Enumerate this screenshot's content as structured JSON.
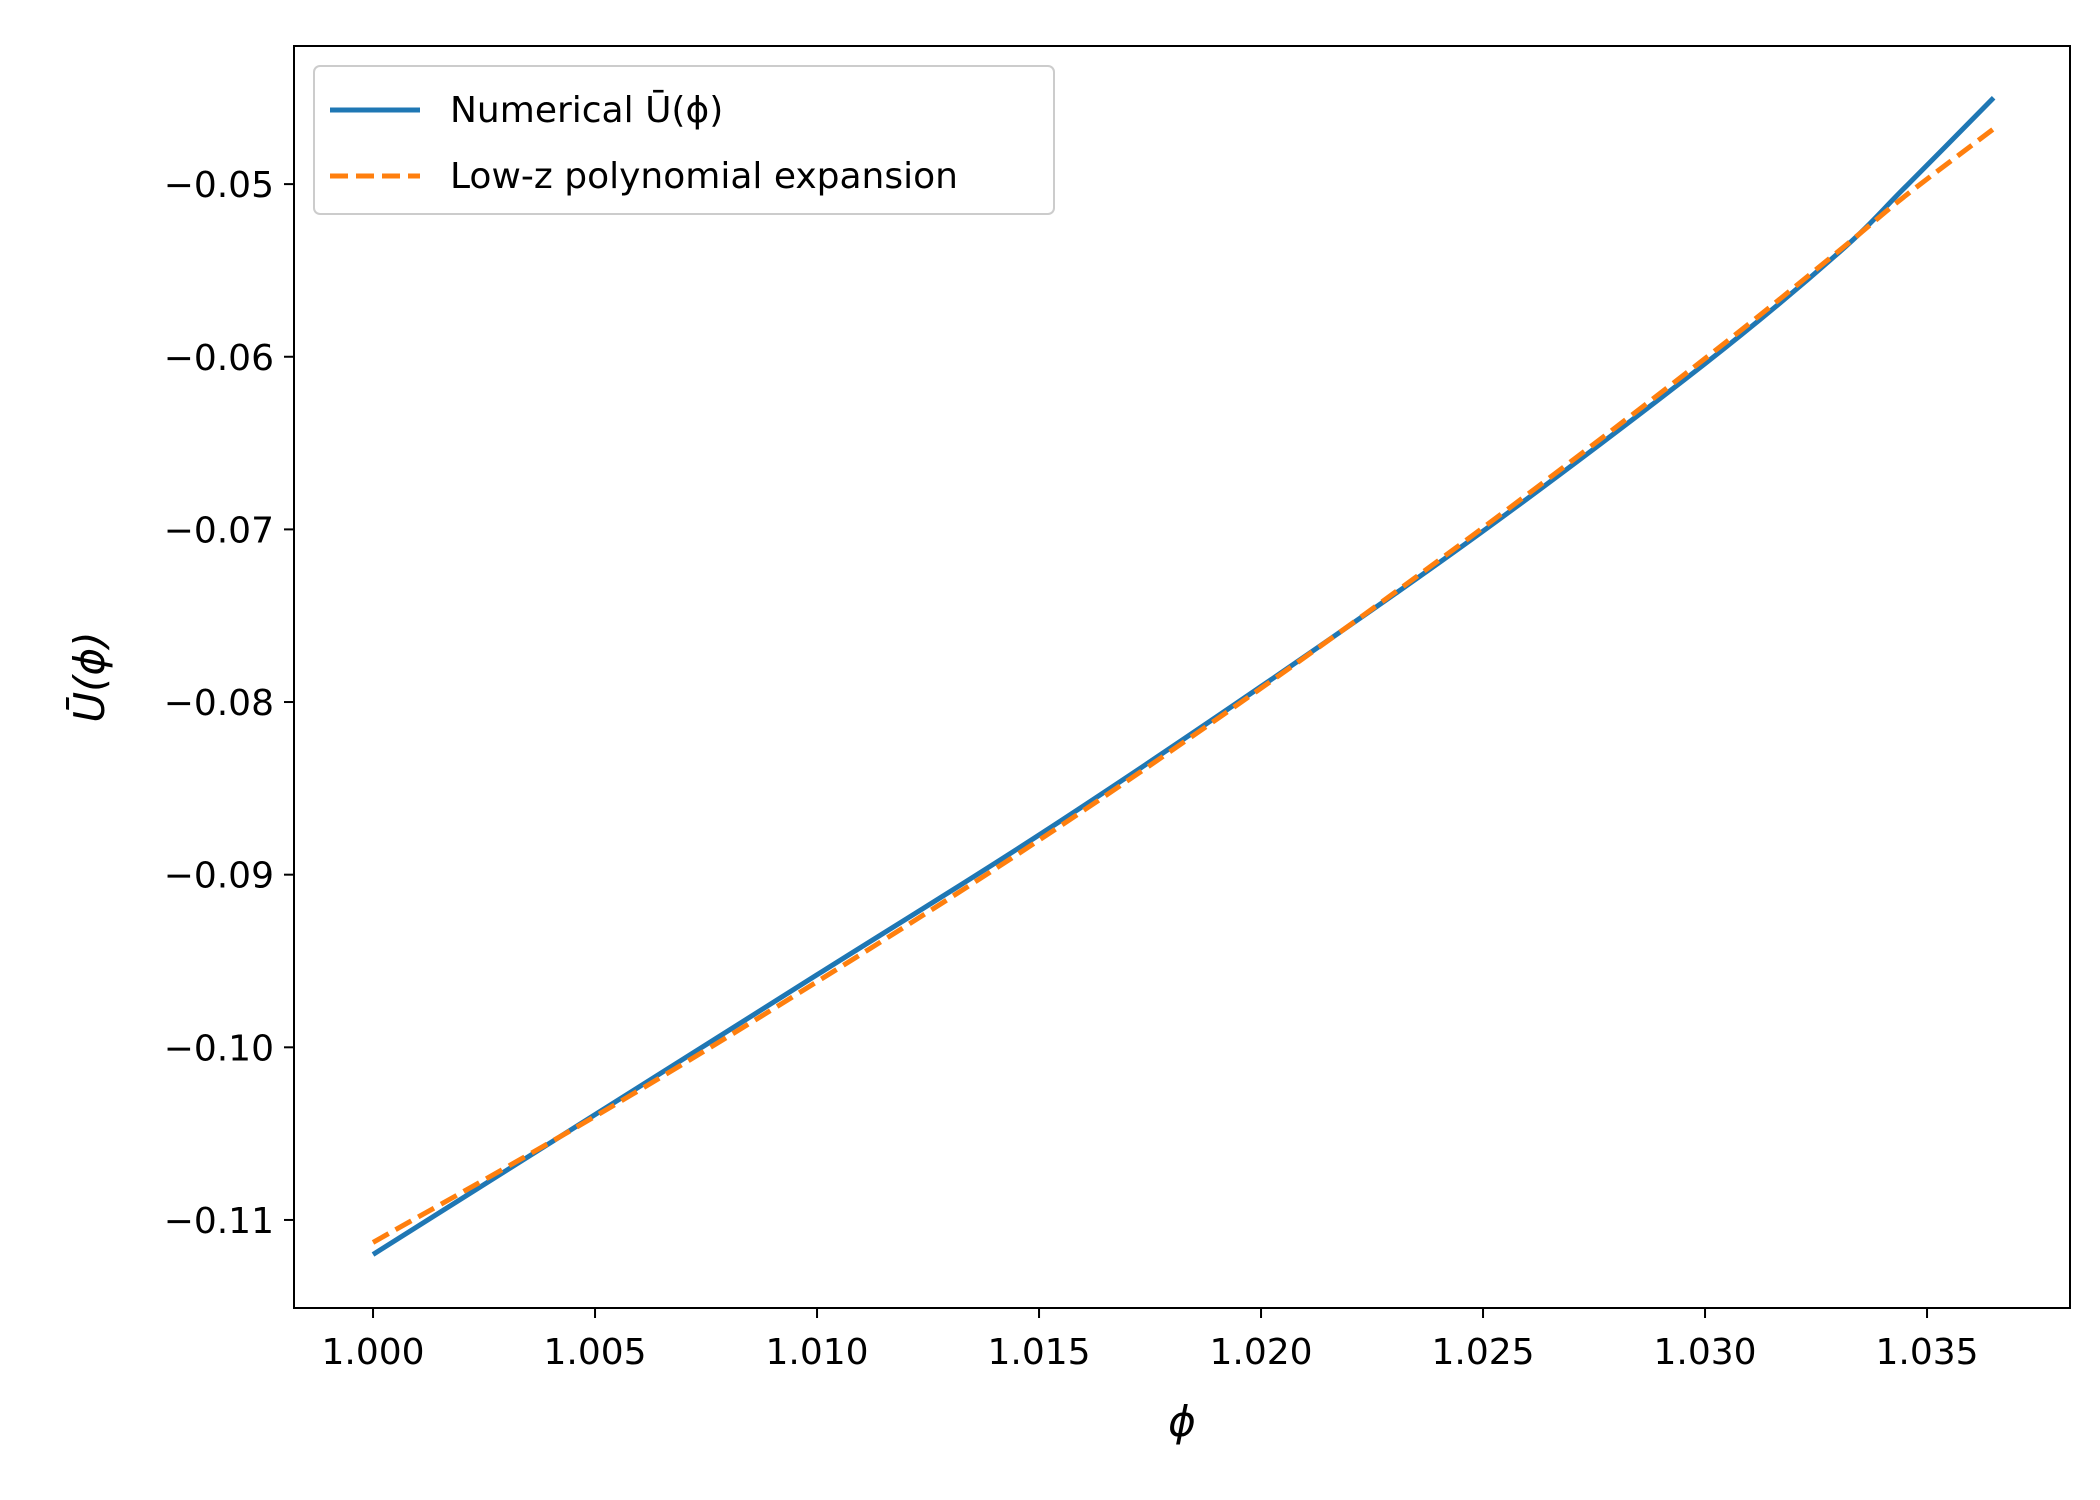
{
  "chart_data": {
    "type": "line",
    "title": "",
    "xlabel": "ϕ",
    "ylabel": "Ū(ϕ)",
    "xlim": [
      0.99822,
      1.03822
    ],
    "ylim": [
      -0.1151,
      -0.042
    ],
    "xticks": [
      1.0,
      1.005,
      1.01,
      1.015,
      1.02,
      1.025,
      1.03,
      1.035
    ],
    "xtick_labels": [
      "1.000",
      "1.005",
      "1.010",
      "1.015",
      "1.020",
      "1.025",
      "1.030",
      "1.035"
    ],
    "yticks": [
      -0.11,
      -0.1,
      -0.09,
      -0.08,
      -0.07,
      -0.06,
      -0.05
    ],
    "ytick_labels": [
      "−0.11",
      "−0.10",
      "−0.09",
      "−0.08",
      "−0.07",
      "−0.06",
      "−0.05"
    ],
    "grid": false,
    "legend": {
      "position": "top-left"
    },
    "series": [
      {
        "name": "Numerical Ū(ϕ)",
        "color": "#1f77b4",
        "style": "solid",
        "x": [
          1.0,
          1.005,
          1.01,
          1.015,
          1.02,
          1.025,
          1.03,
          1.033,
          1.0345,
          1.0365
        ],
        "y": [
          -0.112,
          -0.1039,
          -0.0958,
          -0.0877,
          -0.0791,
          -0.0701,
          -0.0604,
          -0.054,
          -0.0502,
          -0.045
        ]
      },
      {
        "name": "Low-z polynomial expansion",
        "color": "#ff7f0e",
        "style": "dashed",
        "x": [
          1.0,
          1.005,
          1.01,
          1.015,
          1.02,
          1.025,
          1.03,
          1.033,
          1.0345,
          1.0365
        ],
        "y": [
          -0.1113,
          -0.104,
          -0.0962,
          -0.088,
          -0.0792,
          -0.0699,
          -0.0601,
          -0.0539,
          -0.0507,
          -0.0468
        ]
      }
    ]
  }
}
